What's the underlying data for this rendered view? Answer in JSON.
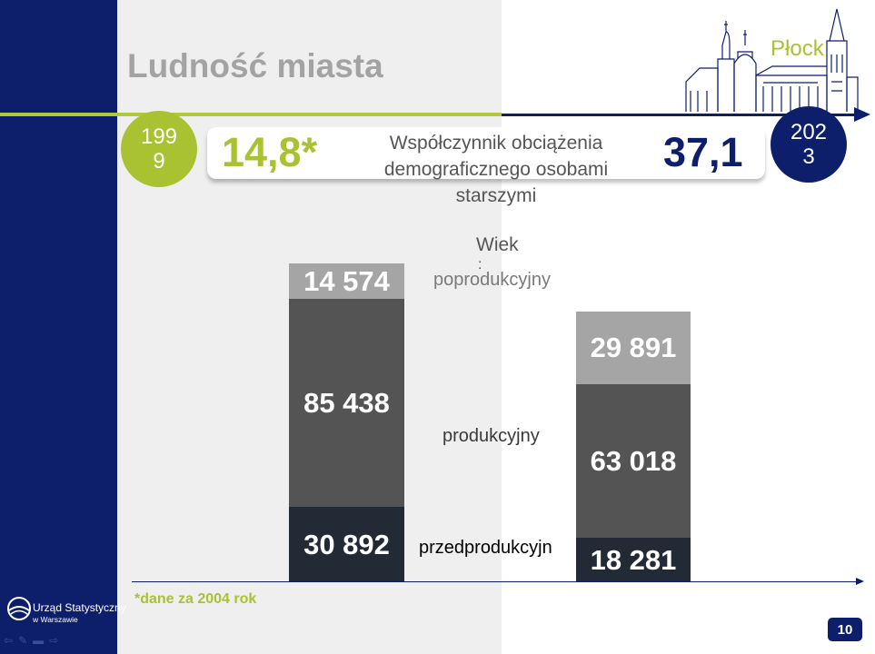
{
  "slide": {
    "title": "Ludność miasta",
    "city": "Płock",
    "page_number": "10",
    "footnote": "*dane za 2004 rok"
  },
  "timeline": {
    "start_year": "1999",
    "end_year": "2023"
  },
  "coefficient": {
    "label": "Współczynnik obciążenia demograficznego osobami starszymi",
    "start_value": "14,8*",
    "end_value": "37,1"
  },
  "logo": {
    "line1": "Urząd Statystyczny",
    "line2": "w Warszawie"
  },
  "chart_data": {
    "type": "bar",
    "stacked": true,
    "categories": [
      "1999",
      "2023"
    ],
    "legend_title": "Wiek\n:",
    "series": [
      {
        "name": "przedprodukcyjny",
        "values": [
          30892,
          18281
        ],
        "labels": [
          "30 892",
          "18 281"
        ],
        "color": "#222a35"
      },
      {
        "name": "produkcyjny",
        "values": [
          85438,
          63018
        ],
        "labels": [
          "85 438",
          "63 018"
        ],
        "color": "#545454"
      },
      {
        "name": "poprodukcyjny",
        "values": [
          14574,
          29891
        ],
        "labels": [
          "14 574",
          "29 891"
        ],
        "color": "#a5a5a5"
      }
    ],
    "label_colors": [
      "#000000",
      "#3a3a3a",
      "#7a7a7a"
    ],
    "displayed_series_labels": [
      "przedprodukcyjn",
      "produkcyjny",
      "poprodukcyjny"
    ]
  },
  "colors": {
    "navy": "#0d1f6b",
    "green": "#a8c232",
    "grey_panel": "#efefef"
  }
}
